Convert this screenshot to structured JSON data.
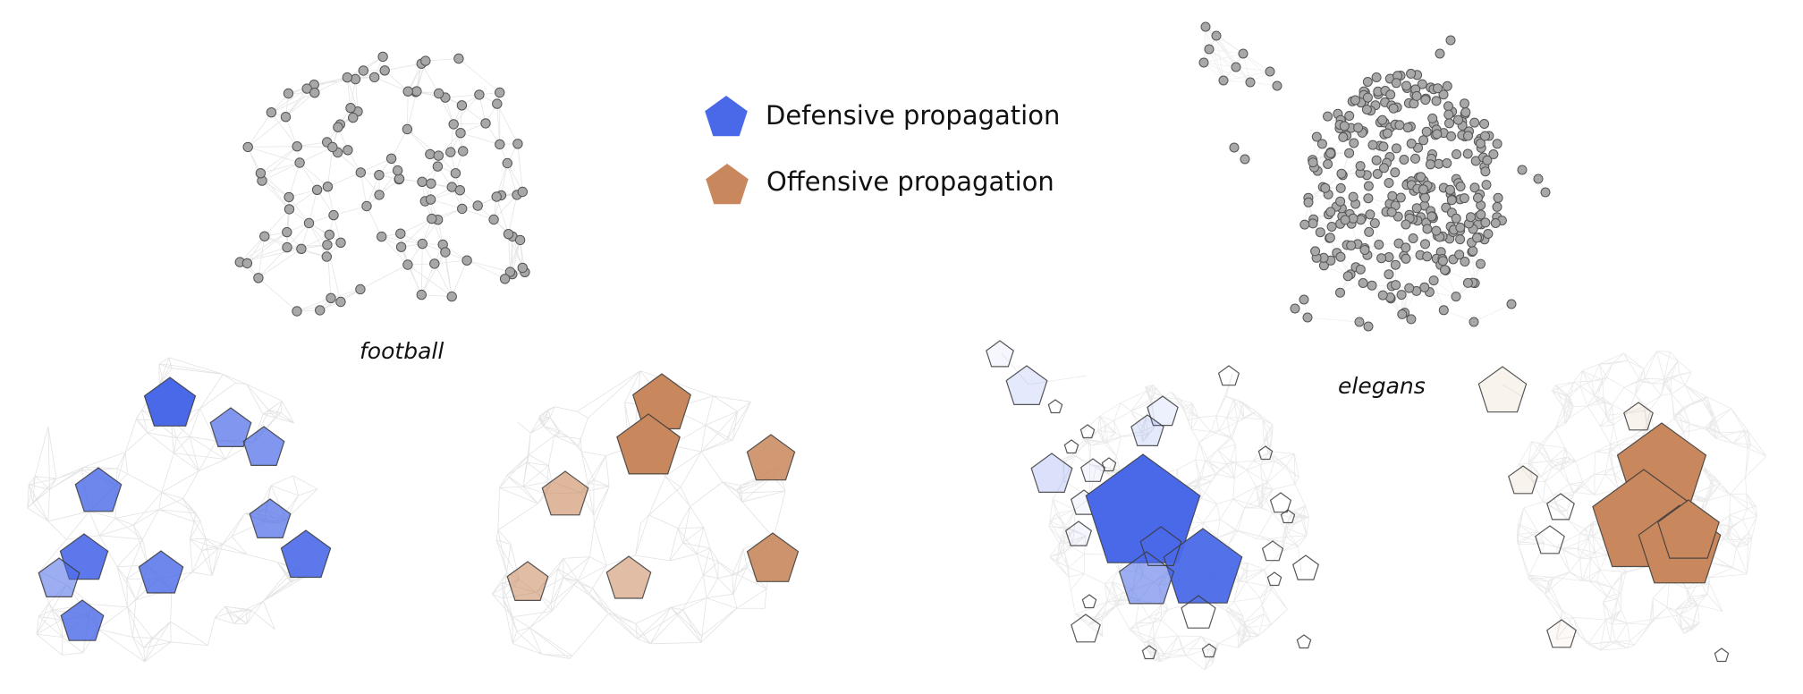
{
  "legend": {
    "defensive": {
      "label": "Defensive propagation",
      "color": "#4a69e8"
    },
    "offensive": {
      "label": "Offensive propagation",
      "color": "#c8875c"
    }
  },
  "networks": {
    "football": {
      "label": "football"
    },
    "elegans": {
      "label": "elegans"
    }
  },
  "colors": {
    "node": "#a8a8a8",
    "node_stroke": "#555555",
    "edge": "#cfcfcf",
    "pentagon_stroke": "#3a3a3a"
  }
}
